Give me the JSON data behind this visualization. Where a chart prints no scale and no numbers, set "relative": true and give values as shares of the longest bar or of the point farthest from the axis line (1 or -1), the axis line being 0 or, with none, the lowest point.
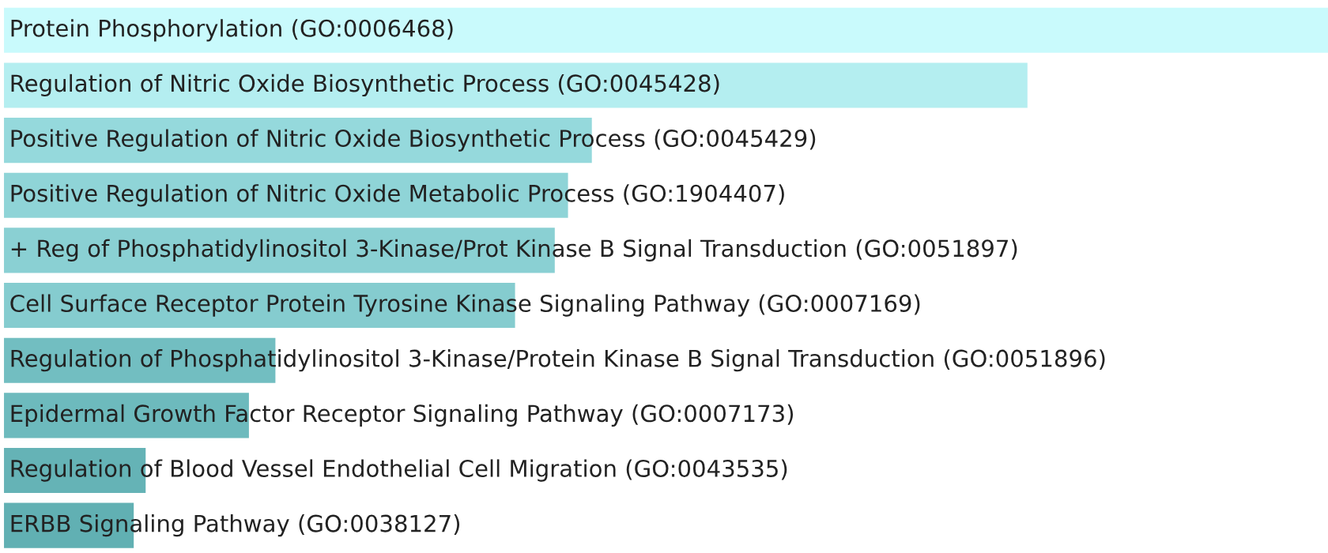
{
  "chart_data": {
    "type": "bar",
    "orientation": "horizontal",
    "relative": true,
    "categories": [
      "Protein Phosphorylation (GO:0006468)",
      "Regulation of Nitric Oxide Biosynthetic Process (GO:0045428)",
      "Positive Regulation of Nitric Oxide Biosynthetic Process (GO:0045429)",
      "Positive Regulation of Nitric Oxide Metabolic Process (GO:1904407)",
      "+ Reg of Phosphatidylinositol 3-Kinase/Prot Kinase B Signal Transduction (GO:0051897)",
      "Cell Surface Receptor Protein Tyrosine Kinase Signaling Pathway (GO:0007169)",
      "Regulation of Phosphatidylinositol 3-Kinase/Protein Kinase B Signal Transduction (GO:0051896)",
      "Epidermal Growth Factor Receptor Signaling Pathway (GO:0007173)",
      "Regulation of Blood Vessel Endothelial Cell Migration (GO:0043535)",
      "ERBB Signaling Pathway (GO:0038127)"
    ],
    "values": [
      1.0,
      0.773,
      0.444,
      0.426,
      0.416,
      0.386,
      0.205,
      0.185,
      0.107,
      0.098
    ],
    "colors": [
      "#c9fafc",
      "#b4eef0",
      "#95d9dc",
      "#8fd4d7",
      "#8ad0d3",
      "#85cccf",
      "#72bec1",
      "#6dbabd",
      "#65b3b6",
      "#61b0b3"
    ]
  }
}
